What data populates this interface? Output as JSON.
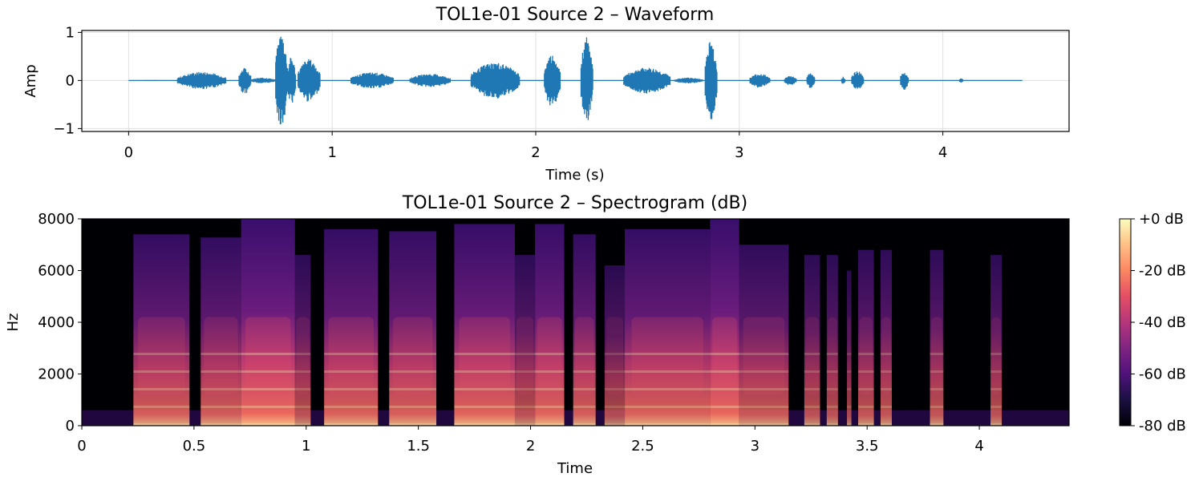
{
  "chart_data": [
    {
      "type": "line",
      "title": "TOL1e-01 Source 2 – Waveform",
      "xlabel": "Time (s)",
      "ylabel": "Amp",
      "xlim": [
        -0.23,
        4.62
      ],
      "ylim": [
        -1.06,
        1.04
      ],
      "x_ticks": [
        0,
        1,
        2,
        3,
        4
      ],
      "x_tick_labels": [
        "0",
        "1",
        "2",
        "3",
        "4"
      ],
      "y_ticks": [
        1,
        0,
        -1
      ],
      "y_tick_labels": [
        "1",
        "0",
        "−1"
      ],
      "grid": true,
      "color": "#1f77b4",
      "duration": 4.39,
      "segments": [
        {
          "t0": 0.0,
          "t1": 0.24,
          "amp": 0.01
        },
        {
          "t0": 0.24,
          "t1": 0.48,
          "amp": 0.18
        },
        {
          "t0": 0.54,
          "t1": 0.6,
          "amp": 0.28
        },
        {
          "t0": 0.6,
          "t1": 0.72,
          "amp": 0.06
        },
        {
          "t0": 0.72,
          "t1": 0.78,
          "amp": 1.0
        },
        {
          "t0": 0.78,
          "t1": 0.82,
          "amp": 0.5
        },
        {
          "t0": 0.83,
          "t1": 0.94,
          "amp": 0.45
        },
        {
          "t0": 1.09,
          "t1": 1.3,
          "amp": 0.17
        },
        {
          "t0": 1.38,
          "t1": 1.58,
          "amp": 0.14
        },
        {
          "t0": 1.68,
          "t1": 1.92,
          "amp": 0.38
        },
        {
          "t0": 2.04,
          "t1": 2.12,
          "amp": 0.55
        },
        {
          "t0": 2.22,
          "t1": 2.28,
          "amp": 0.9
        },
        {
          "t0": 2.43,
          "t1": 2.66,
          "amp": 0.27
        },
        {
          "t0": 2.68,
          "t1": 2.82,
          "amp": 0.06
        },
        {
          "t0": 2.83,
          "t1": 2.89,
          "amp": 0.85
        },
        {
          "t0": 3.05,
          "t1": 3.15,
          "amp": 0.15
        },
        {
          "t0": 3.22,
          "t1": 3.28,
          "amp": 0.1
        },
        {
          "t0": 3.33,
          "t1": 3.37,
          "amp": 0.17
        },
        {
          "t0": 3.5,
          "t1": 3.52,
          "amp": 0.08
        },
        {
          "t0": 3.55,
          "t1": 3.61,
          "amp": 0.2
        },
        {
          "t0": 3.79,
          "t1": 3.83,
          "amp": 0.2
        },
        {
          "t0": 4.08,
          "t1": 4.1,
          "amp": 0.05
        }
      ]
    },
    {
      "type": "heatmap",
      "title": "TOL1e-01 Source 2 – Spectrogram (dB)",
      "xlabel": "Time",
      "ylabel": "Hz",
      "xlim": [
        0,
        4.4
      ],
      "ylim": [
        0,
        8000
      ],
      "x_ticks": [
        0,
        0.5,
        1,
        1.5,
        2,
        2.5,
        3,
        3.5,
        4
      ],
      "x_tick_labels": [
        "0",
        "0.5",
        "1",
        "1.5",
        "2",
        "2.5",
        "3",
        "3.5",
        "4"
      ],
      "y_ticks": [
        0,
        2000,
        4000,
        6000,
        8000
      ],
      "y_tick_labels": [
        "0",
        "2000",
        "4000",
        "6000",
        "8000"
      ],
      "colormap": "magma",
      "colorbar": {
        "range": [
          -80,
          0
        ],
        "ticks": [
          0,
          -20,
          -40,
          -60,
          -80
        ],
        "tick_labels": [
          "+0 dB",
          "-20 dB",
          "-40 dB",
          "-60 dB",
          "-80 dB"
        ]
      },
      "segments": [
        {
          "t0": 0.23,
          "t1": 0.48,
          "level": 0.75
        },
        {
          "t0": 0.53,
          "t1": 0.71,
          "level": 0.72
        },
        {
          "t0": 0.71,
          "t1": 0.95,
          "level": 0.95
        },
        {
          "t0": 0.95,
          "t1": 1.02,
          "level": 0.55
        },
        {
          "t0": 1.08,
          "t1": 1.32,
          "level": 0.8
        },
        {
          "t0": 1.37,
          "t1": 1.58,
          "level": 0.78
        },
        {
          "t0": 1.66,
          "t1": 1.93,
          "level": 0.85
        },
        {
          "t0": 1.93,
          "t1": 2.02,
          "level": 0.55
        },
        {
          "t0": 2.02,
          "t1": 2.15,
          "level": 0.85
        },
        {
          "t0": 2.19,
          "t1": 2.29,
          "level": 0.75
        },
        {
          "t0": 2.33,
          "t1": 2.42,
          "level": 0.45
        },
        {
          "t0": 2.42,
          "t1": 2.8,
          "level": 0.8
        },
        {
          "t0": 2.8,
          "t1": 2.93,
          "level": 0.92
        },
        {
          "t0": 2.93,
          "t1": 3.15,
          "level": 0.65
        },
        {
          "t0": 3.22,
          "t1": 3.29,
          "level": 0.55
        },
        {
          "t0": 3.32,
          "t1": 3.37,
          "level": 0.55
        },
        {
          "t0": 3.41,
          "t1": 3.43,
          "level": 0.4
        },
        {
          "t0": 3.46,
          "t1": 3.53,
          "level": 0.6
        },
        {
          "t0": 3.56,
          "t1": 3.61,
          "level": 0.6
        },
        {
          "t0": 3.78,
          "t1": 3.84,
          "level": 0.6
        },
        {
          "t0": 4.05,
          "t1": 4.1,
          "level": 0.55
        }
      ]
    }
  ]
}
